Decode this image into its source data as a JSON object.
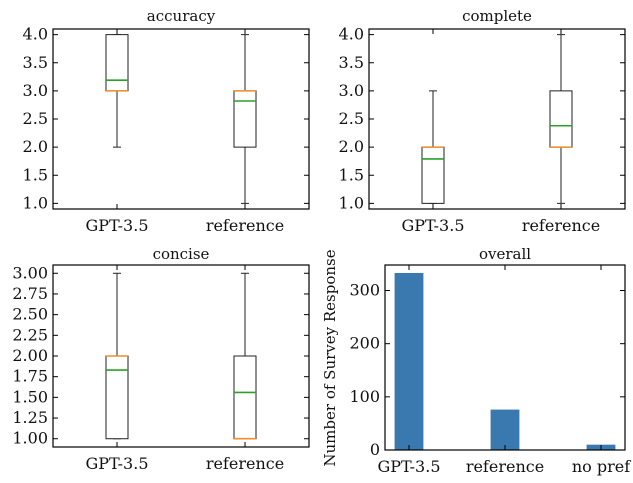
{
  "colors": {
    "median": "#f28e2b",
    "mean": "#2ca02c",
    "bar": "#3a78b0"
  },
  "chart_data": [
    {
      "type": "box",
      "title": "accuracy",
      "categories": [
        "GPT-3.5",
        "reference"
      ],
      "ylim": [
        0.9,
        4.1
      ],
      "yticks": [
        "1.0",
        "1.5",
        "2.0",
        "2.5",
        "3.0",
        "3.5",
        "4.0"
      ],
      "boxes": [
        {
          "label": "GPT-3.5",
          "whislo": 2.0,
          "q1": 3.0,
          "med": 3.0,
          "mean": 3.19,
          "q3": 4.0,
          "whishi": 4.0
        },
        {
          "label": "reference",
          "whislo": 1.0,
          "q1": 2.0,
          "med": 3.0,
          "mean": 2.82,
          "q3": 3.0,
          "whishi": 4.0
        }
      ]
    },
    {
      "type": "box",
      "title": "complete",
      "categories": [
        "GPT-3.5",
        "reference"
      ],
      "ylim": [
        0.9,
        4.1
      ],
      "yticks": [
        "1.0",
        "1.5",
        "2.0",
        "2.5",
        "3.0",
        "3.5",
        "4.0"
      ],
      "boxes": [
        {
          "label": "GPT-3.5",
          "whislo": 1.0,
          "q1": 1.0,
          "med": 2.0,
          "mean": 1.79,
          "q3": 2.0,
          "whishi": 3.0
        },
        {
          "label": "reference",
          "whislo": 1.0,
          "q1": 2.0,
          "med": 2.0,
          "mean": 2.38,
          "q3": 3.0,
          "whishi": 4.0
        }
      ]
    },
    {
      "type": "box",
      "title": "concise",
      "categories": [
        "GPT-3.5",
        "reference"
      ],
      "ylim": [
        0.9,
        3.1
      ],
      "yticks": [
        "1.00",
        "1.25",
        "1.50",
        "1.75",
        "2.00",
        "2.25",
        "2.50",
        "2.75",
        "3.00"
      ],
      "boxes": [
        {
          "label": "GPT-3.5",
          "whislo": 1.0,
          "q1": 1.0,
          "med": 2.0,
          "mean": 1.83,
          "q3": 2.0,
          "whishi": 3.0
        },
        {
          "label": "reference",
          "whislo": 1.0,
          "q1": 1.0,
          "med": 1.0,
          "mean": 1.56,
          "q3": 2.0,
          "whishi": 3.0
        }
      ]
    },
    {
      "type": "bar",
      "title": "overall",
      "ylabel": "Number of Survey Response",
      "categories": [
        "GPT-3.5",
        "reference",
        "no pref"
      ],
      "values": [
        333,
        76,
        10
      ],
      "ylim": [
        0,
        348
      ],
      "yticks": [
        "0",
        "100",
        "200",
        "300"
      ]
    }
  ]
}
